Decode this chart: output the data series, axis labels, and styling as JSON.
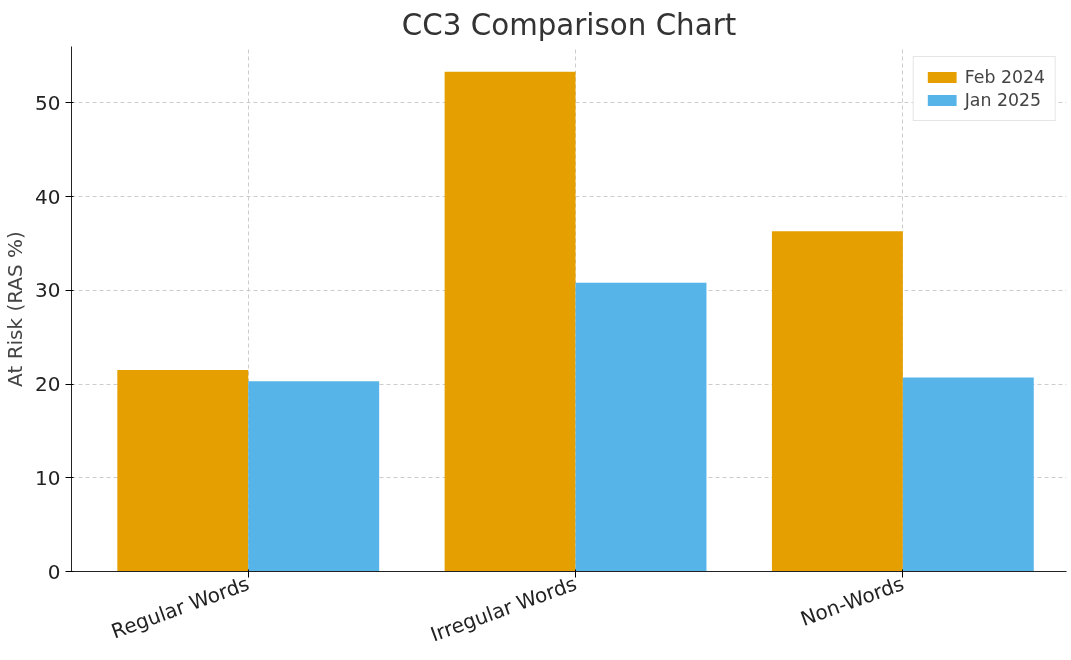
{
  "chart_data": {
    "type": "bar",
    "title": "CC3 Comparison Chart",
    "ylabel": "At Risk (RAS %)",
    "categories": [
      "Regular Words",
      "Irregular Words",
      "Non-Words"
    ],
    "series": [
      {
        "name": "Feb 2024",
        "color": "#e69f00",
        "values": [
          21.5,
          53.3,
          36.3
        ]
      },
      {
        "name": "Jan 2025",
        "color": "#56b4e9",
        "values": [
          20.3,
          30.8,
          20.7
        ]
      }
    ],
    "ylim": [
      0,
      56
    ],
    "yticks": [
      0,
      10,
      20,
      30,
      40,
      50
    ],
    "grid": true,
    "legend": "top right"
  }
}
